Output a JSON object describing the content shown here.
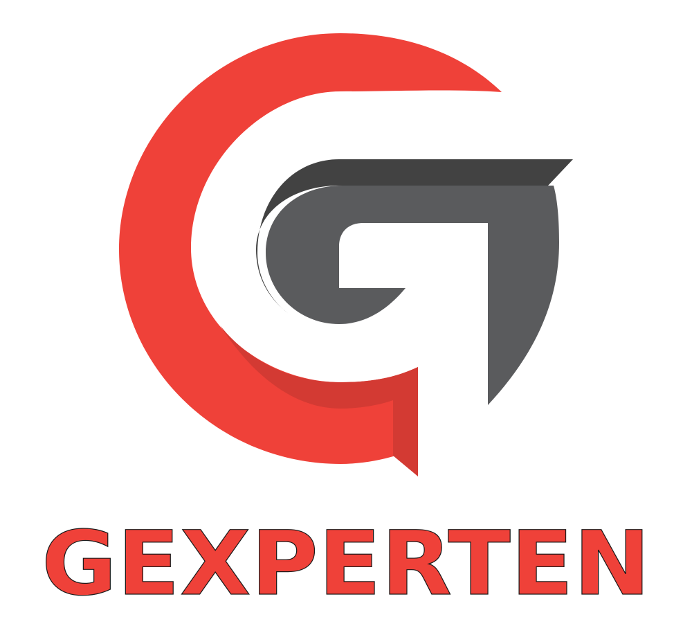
{
  "brand": {
    "name": "GEXPERTEN",
    "logo_icon": "g-monogram-icon"
  },
  "colors": {
    "brand_red": "#ef4139",
    "brand_red_shadow": "#d33a33",
    "gray_dark": "#424242",
    "gray_mid": "#5a5b5d",
    "background": "#ffffff"
  }
}
